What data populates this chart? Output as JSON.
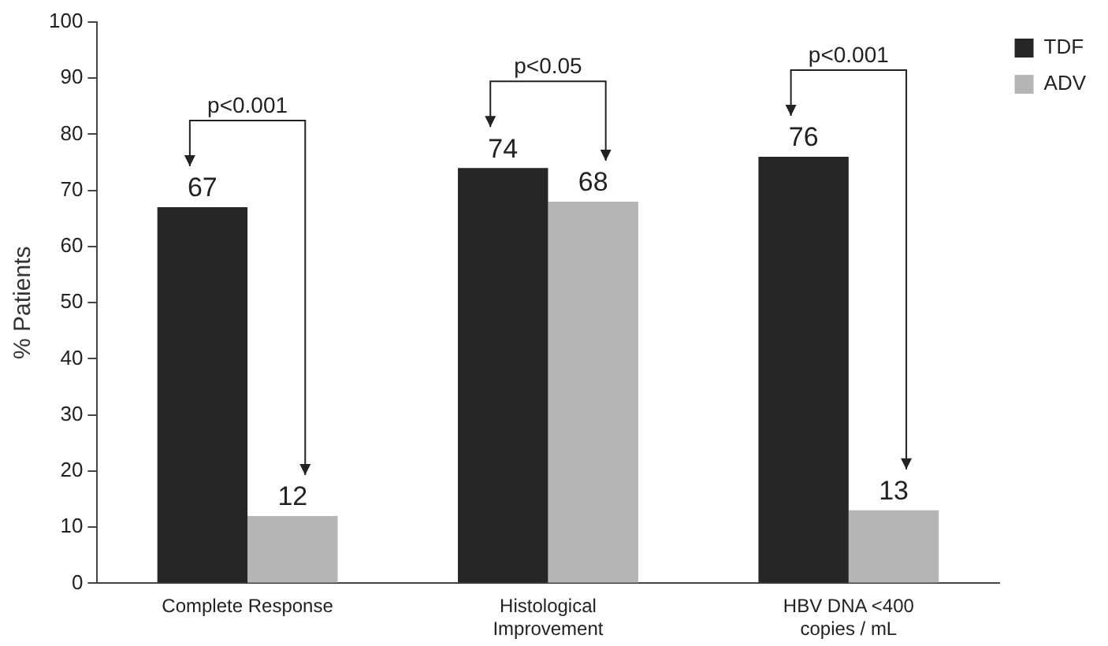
{
  "chart_data": {
    "type": "bar",
    "ylabel": "% Patients",
    "categories": [
      "Complete Response",
      "Histological Improvement",
      "HBV DNA <400 copies / mL"
    ],
    "series": [
      {
        "name": "TDF",
        "color": "#262626",
        "values": [
          67,
          74,
          76
        ]
      },
      {
        "name": "ADV",
        "color": "#b5b5b5",
        "values": [
          12,
          68,
          13
        ]
      }
    ],
    "ylim": [
      0,
      100
    ],
    "yticks": [
      0,
      10,
      20,
      30,
      40,
      50,
      60,
      70,
      80,
      90,
      100
    ],
    "data_labels": true,
    "grid": false,
    "legend": "top right",
    "annotations": [
      "p<0.001",
      "p<0.05",
      "p<0.001"
    ]
  }
}
